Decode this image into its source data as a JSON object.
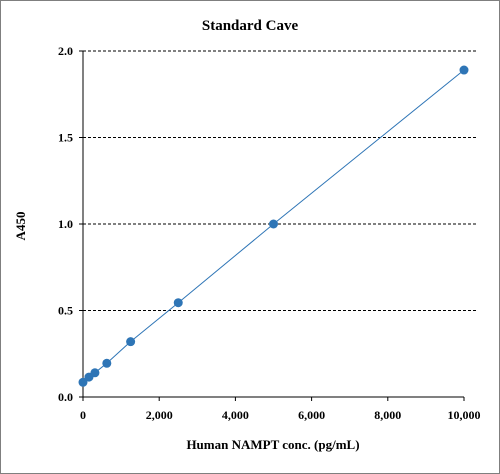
{
  "chart_data": {
    "type": "scatter",
    "title": "Standard Cave",
    "xlabel": "Human NAMPT conc. (pg/mL)",
    "ylabel": "A450",
    "xlim": [
      0,
      10000
    ],
    "ylim": [
      0,
      2.0
    ],
    "x_ticks": [
      0,
      2000,
      4000,
      6000,
      8000,
      10000
    ],
    "x_tick_labels": [
      "0",
      "2,000",
      "4,000",
      "6,000",
      "8,000",
      "10,000"
    ],
    "y_ticks": [
      0,
      0.5,
      1.0,
      1.5,
      2.0
    ],
    "y_tick_labels": [
      "0.0",
      "0.5",
      "1.0",
      "1.5",
      "2.0"
    ],
    "grid": "horizontal dashed",
    "marker_color": "#2e75b6",
    "line_color": "#2e75b6",
    "points": [
      {
        "x": 0,
        "y": 0.085
      },
      {
        "x": 156,
        "y": 0.115
      },
      {
        "x": 313,
        "y": 0.14
      },
      {
        "x": 625,
        "y": 0.195
      },
      {
        "x": 1250,
        "y": 0.32
      },
      {
        "x": 2500,
        "y": 0.545
      },
      {
        "x": 5000,
        "y": 1.0
      },
      {
        "x": 10000,
        "y": 1.89
      }
    ]
  }
}
